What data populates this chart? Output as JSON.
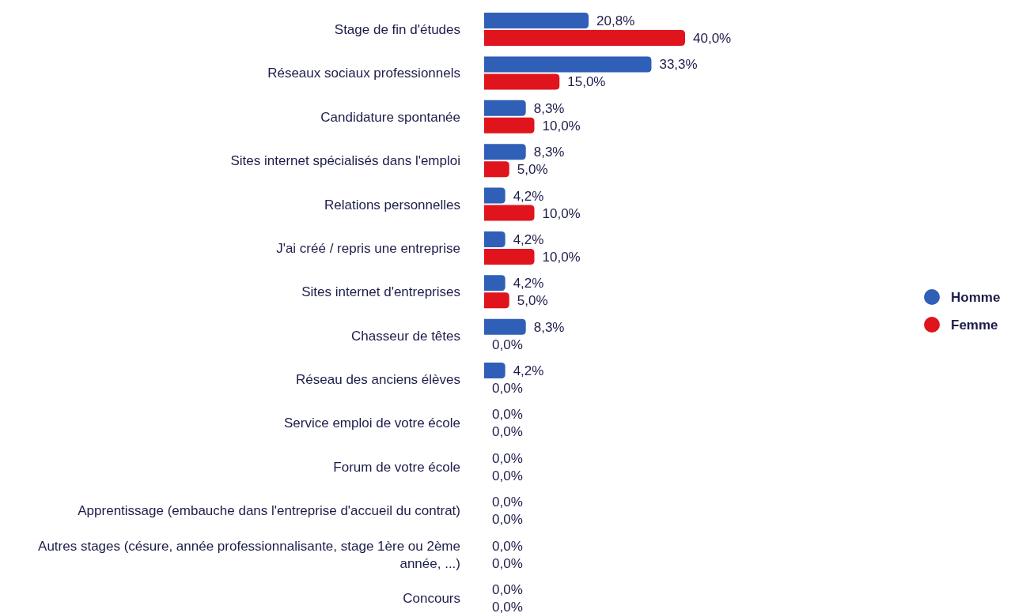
{
  "chart_data": {
    "type": "bar",
    "orientation": "horizontal",
    "legend": "right",
    "categories": [
      "Stage de fin d'études",
      "Réseaux sociaux professionnels",
      "Candidature spontanée",
      "Sites internet spécialisés dans l'emploi",
      "Relations personnelles",
      "J'ai créé / repris une entreprise",
      "Sites internet d'entreprises",
      "Chasseur de têtes",
      "Réseau des anciens élèves",
      "Service emploi de votre école",
      "Forum de votre école",
      "Apprentissage (embauche dans l'entreprise d'accueil du contrat)",
      "Autres stages (césure, année professionnalisante, stage 1ère ou 2ème année, ...)",
      "Concours"
    ],
    "series": [
      {
        "name": "Homme",
        "color": "#2f5fb7",
        "values": [
          20.8,
          33.3,
          8.3,
          8.3,
          4.2,
          4.2,
          4.2,
          8.3,
          4.2,
          0,
          0,
          0,
          0,
          0
        ],
        "value_labels": [
          "20,8%",
          "33,3%",
          "8,3%",
          "8,3%",
          "4,2%",
          "4,2%",
          "4,2%",
          "8,3%",
          "4,2%",
          "0,0%",
          "0,0%",
          "0,0%",
          "0,0%",
          "0,0%"
        ]
      },
      {
        "name": "Femme",
        "color": "#e0141c",
        "values": [
          40,
          15,
          10,
          5,
          10,
          10,
          5,
          0,
          0,
          0,
          0,
          0,
          0,
          0
        ],
        "value_labels": [
          "40,0%",
          "15,0%",
          "10,0%",
          "5,0%",
          "10,0%",
          "10,0%",
          "5,0%",
          "0,0%",
          "0,0%",
          "0,0%",
          "0,0%",
          "0,0%",
          "0,0%",
          "0,0%"
        ]
      }
    ]
  }
}
